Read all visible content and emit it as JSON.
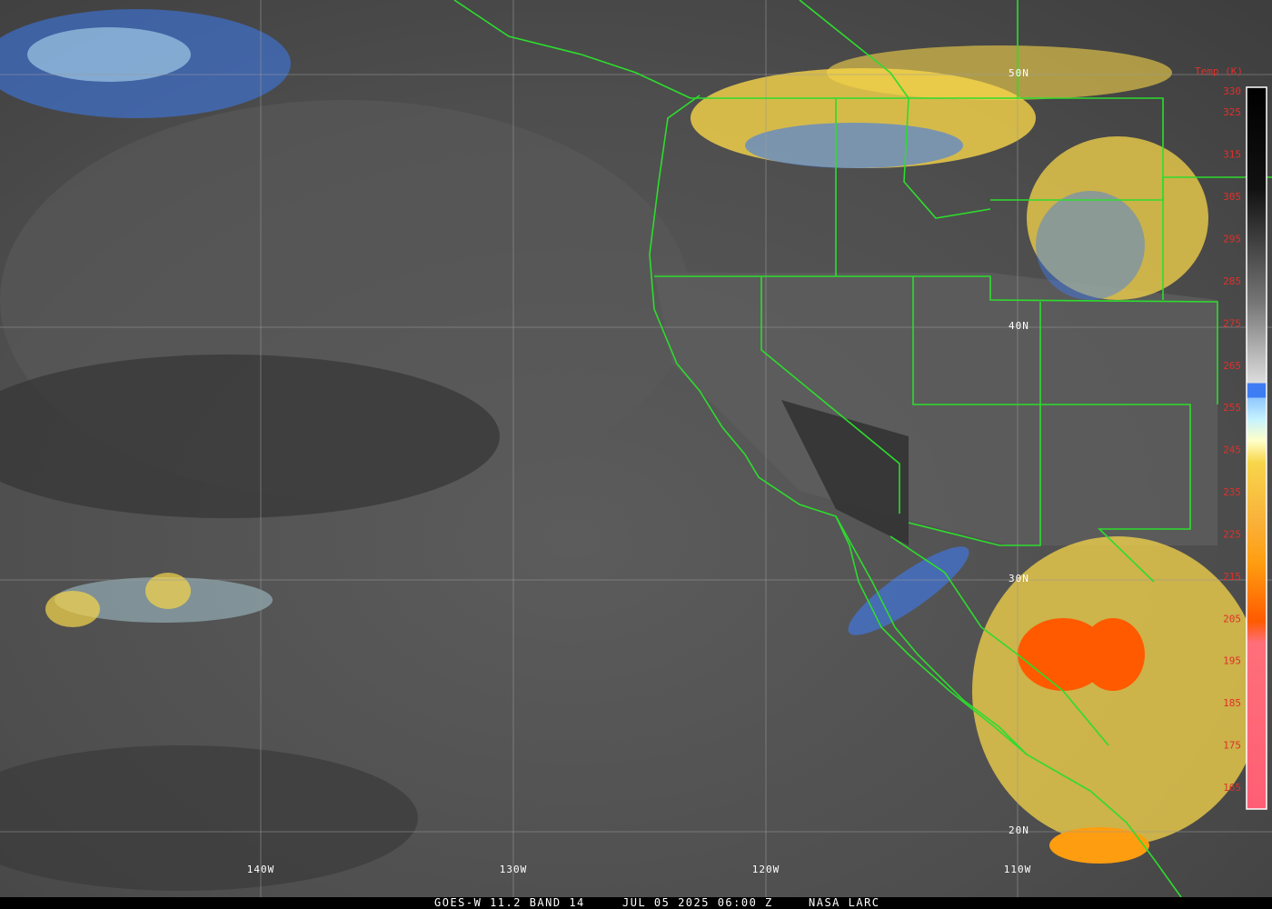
{
  "map": {
    "latitudes": [
      "50N",
      "40N",
      "30N",
      "20N"
    ],
    "longitudes": [
      "140W",
      "130W",
      "120W",
      "110W"
    ]
  },
  "colorbar": {
    "title": "Temp (K)",
    "ticks": [
      330,
      325,
      315,
      305,
      295,
      285,
      275,
      265,
      255,
      245,
      235,
      225,
      215,
      205,
      195,
      185,
      175,
      165
    ]
  },
  "footer": {
    "satellite": "GOES-W 11.2 BAND 14",
    "time": "JUL 05 2025 06:00 Z",
    "source": "NASA LARC"
  }
}
